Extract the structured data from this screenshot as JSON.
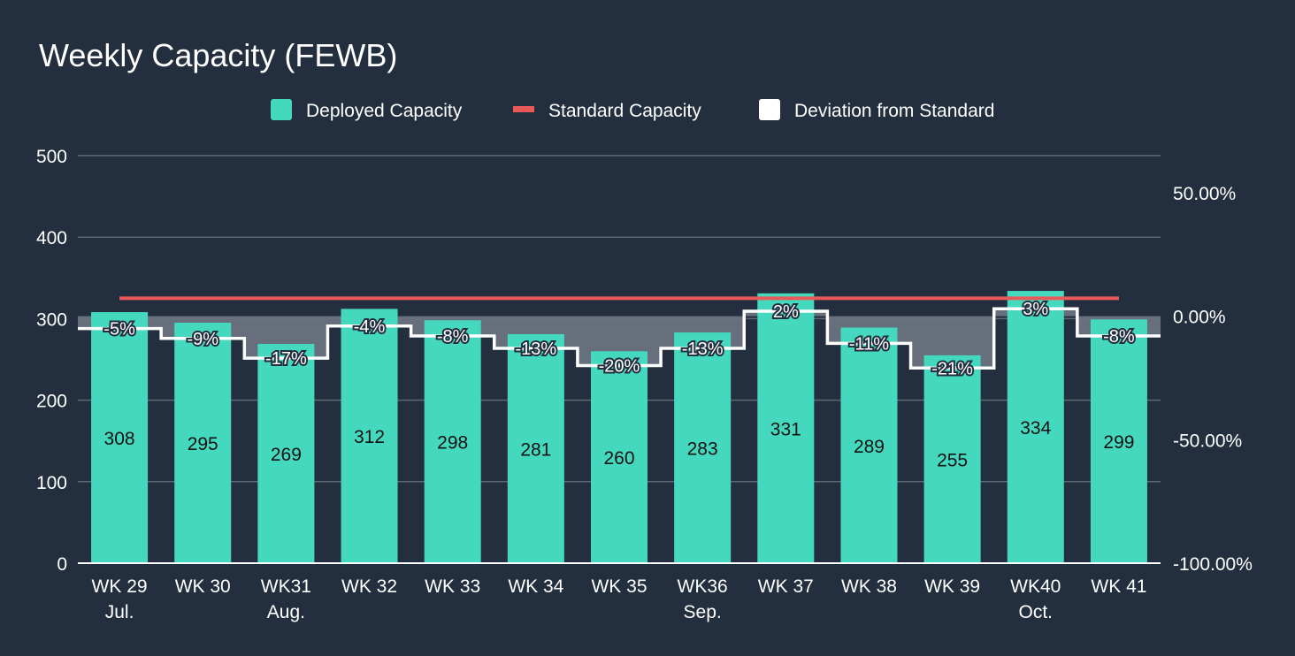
{
  "chart_data": {
    "type": "bar",
    "title": "Weekly Capacity (FEWB)",
    "categories": [
      "WK 29",
      "WK 30",
      "WK31",
      "WK 32",
      "WK 33",
      "WK 34",
      "WK 35",
      "WK36",
      "WK 37",
      "WK 38",
      "WK 39",
      "WK40",
      "WK 41"
    ],
    "category_sublabels": [
      "Jul.",
      "",
      "Aug.",
      "",
      "",
      "",
      "",
      "Sep.",
      "",
      "",
      "",
      "Oct.",
      ""
    ],
    "series": [
      {
        "name": "Deployed Capacity",
        "type": "bar",
        "axis": "left",
        "color": "#44d9bf",
        "values": [
          308,
          295,
          269,
          312,
          298,
          281,
          260,
          283,
          331,
          289,
          255,
          334,
          299
        ]
      },
      {
        "name": "Standard Capacity",
        "type": "line",
        "axis": "left",
        "color": "#e85a5a",
        "values": [
          325,
          325,
          325,
          325,
          325,
          325,
          325,
          325,
          325,
          325,
          325,
          325,
          325
        ]
      },
      {
        "name": "Deviation from Standard",
        "type": "step-area",
        "axis": "right",
        "color": "#ffffff",
        "values": [
          -5,
          -9,
          -17,
          -4,
          -8,
          -13,
          -20,
          -13,
          2,
          -11,
          -21,
          3,
          -8
        ],
        "labels": [
          "-5%",
          "-9%",
          "-17%",
          "-4%",
          "-8%",
          "-13%",
          "-20%",
          "-13%",
          "2%",
          "-11%",
          "-21%",
          "3%",
          "-8%"
        ]
      }
    ],
    "y_left": {
      "min": 0,
      "max": 500,
      "ticks": [
        0,
        100,
        200,
        300,
        400,
        500
      ],
      "tick_labels": [
        "0",
        "100",
        "200",
        "300",
        "400",
        "500"
      ]
    },
    "y_right": {
      "min": -100,
      "max": 60,
      "ticks": [
        -100,
        -50,
        0,
        50
      ],
      "tick_labels": [
        "-100.00%",
        "-50.00%",
        "0.00%",
        "50.00%"
      ]
    },
    "grid": true,
    "legend_position": "top-center"
  }
}
